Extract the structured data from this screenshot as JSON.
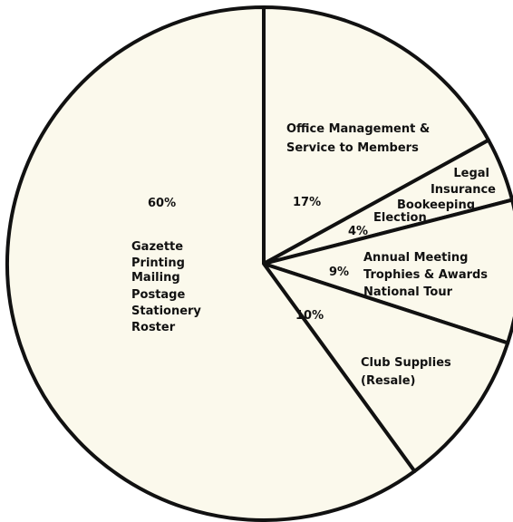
{
  "chart_data": {
    "type": "pie",
    "slices": [
      {
        "value_label": "17%",
        "value": 17,
        "items": [
          "Office Management &",
          "Service to Members"
        ]
      },
      {
        "value_label": "4%",
        "value": 4,
        "items": [
          "Legal",
          "Insurance",
          "Bookeeping",
          "Election"
        ]
      },
      {
        "value_label": "9%",
        "value": 9,
        "items": [
          "Annual Meeting",
          "Trophies & Awards",
          "National Tour"
        ]
      },
      {
        "value_label": "10%",
        "value": 10,
        "items": [
          "Club Supplies",
          "(Resale)"
        ]
      },
      {
        "value_label": "60%",
        "value": 60,
        "items": [
          "Gazette",
          "Printing",
          "Mailing",
          "Postage",
          "Stationery",
          "Roster"
        ]
      }
    ],
    "colors": {
      "fill": "#fbf9ec",
      "stroke": "#111111"
    }
  }
}
